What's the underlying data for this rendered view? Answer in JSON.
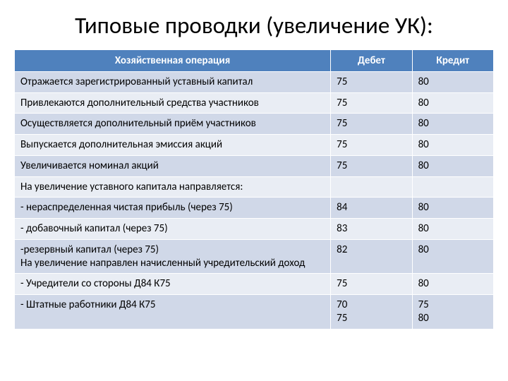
{
  "title": "Типовые проводки (увеличение УК):",
  "columns": {
    "op": "Хозяйственная операция",
    "debit": "Дебет",
    "credit": "Кредит"
  },
  "rows": [
    {
      "op": "Отражается зарегистрированный уставный капитал",
      "debit": "75",
      "credit": "80"
    },
    {
      "op": "Привлекаются дополнительный средства участников",
      "debit": "75",
      "credit": "80"
    },
    {
      "op": "Осуществляется дополнительный приём участников",
      "debit": "75",
      "credit": "80"
    },
    {
      "op": "Выпускается дополнительная эмиссия акций",
      "debit": "75",
      "credit": "80"
    },
    {
      "op": "Увеличивается номинал акций",
      "debit": "75",
      "credit": "80"
    },
    {
      "op": "На увеличение уставного капитала направляется:",
      "debit": "",
      "credit": ""
    },
    {
      "op": "- нераспределенная чистая прибыль  (через 75)",
      "debit": "84",
      "credit": "80"
    },
    {
      "op": "- добавочный капитал  (через 75)",
      "debit": "83",
      "credit": "80"
    },
    {
      "op": "-резервный капитал  (через 75)\nНа увеличение направлен начисленный учредительский доход",
      "debit": "82",
      "credit": "80"
    },
    {
      "op": "- Учредители со стороны Д84 К75",
      "debit": "75",
      "credit": "80"
    },
    {
      "op": "- Штатные работники Д84 К75",
      "debit": "70\n75",
      "credit": "75\n80"
    }
  ],
  "colors": {
    "header_bg": "#4f81bd",
    "header_text": "#ffffff",
    "band0": "#d0d8e8",
    "band1": "#e9edf4",
    "border": "#ffffff"
  },
  "typography": {
    "title_fontsize": 33,
    "body_fontsize": 15,
    "font_family": "Calibri"
  }
}
